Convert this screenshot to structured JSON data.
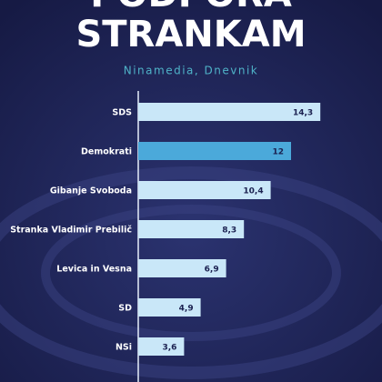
{
  "chart_data": {
    "type": "hbar",
    "title": [
      "PODPORA",
      "STRANKAM"
    ],
    "subtitle": "Ninamedia, Dnevnik",
    "categories": [
      "SDS",
      "Demokrati",
      "Gibanje Svoboda",
      "Stranka Vladimir Prebilič",
      "Levica in Vesna",
      "SD",
      "NSi"
    ],
    "values": [
      14.3,
      12,
      10.4,
      8.3,
      6.9,
      4.9,
      3.6
    ],
    "value_labels": [
      "14,3",
      "12",
      "10,4",
      "8,3",
      "6,9",
      "4,9",
      "3,6"
    ],
    "colors": [
      "#c9e7f8",
      "#4ba9da",
      "#c9e7f8",
      "#c9e7f8",
      "#c9e7f8",
      "#c9e7f8",
      "#c9e7f8"
    ],
    "xlim": [
      0,
      15
    ]
  }
}
